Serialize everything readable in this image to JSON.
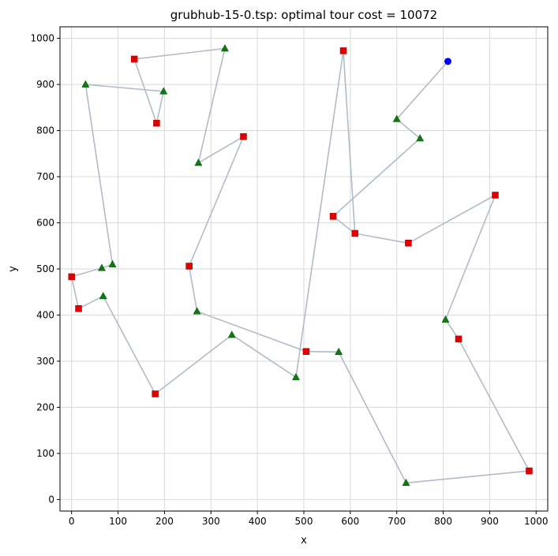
{
  "chart_data": {
    "type": "scatter",
    "title": "grubhub-15-0.tsp: optimal tour cost = 10072",
    "xlabel": "x",
    "ylabel": "y",
    "xlim": [
      -25,
      1025
    ],
    "ylim": [
      -25,
      1025
    ],
    "xticks": [
      0,
      100,
      200,
      300,
      400,
      500,
      600,
      700,
      800,
      900,
      1000
    ],
    "yticks": [
      0,
      100,
      200,
      300,
      400,
      500,
      600,
      700,
      800,
      900,
      1000
    ],
    "grid": true,
    "colors": {
      "tour": "#b0bcc8",
      "start": "#0000ff",
      "pickup": "#e00000",
      "dropoff": "#117711",
      "grid": "#d9d9d9"
    },
    "tour": [
      [
        810,
        950
      ],
      [
        700,
        825
      ],
      [
        750,
        783
      ],
      [
        563,
        614
      ],
      [
        610,
        577
      ],
      [
        725,
        556
      ],
      [
        912,
        660
      ],
      [
        805,
        390
      ],
      [
        833,
        348
      ],
      [
        985,
        62
      ],
      [
        720,
        36
      ],
      [
        575,
        320
      ],
      [
        505,
        321
      ],
      [
        270,
        408
      ],
      [
        253,
        506
      ],
      [
        370,
        787
      ],
      [
        273,
        730
      ],
      [
        330,
        978
      ],
      [
        135,
        955
      ],
      [
        183,
        816
      ],
      [
        198,
        885
      ],
      [
        30,
        900
      ],
      [
        88,
        510
      ],
      [
        65,
        502
      ],
      [
        0,
        483
      ],
      [
        15,
        414
      ],
      [
        68,
        441
      ],
      [
        180,
        229
      ],
      [
        345,
        357
      ],
      [
        483,
        265
      ],
      [
        585,
        973
      ],
      [
        610,
        577
      ]
    ],
    "start": [
      [
        810,
        950
      ]
    ],
    "pickups": [
      [
        585,
        973
      ],
      [
        135,
        955
      ],
      [
        183,
        816
      ],
      [
        370,
        787
      ],
      [
        563,
        614
      ],
      [
        912,
        660
      ],
      [
        610,
        577
      ],
      [
        725,
        556
      ],
      [
        253,
        506
      ],
      [
        0,
        483
      ],
      [
        15,
        414
      ],
      [
        833,
        348
      ],
      [
        505,
        321
      ],
      [
        180,
        229
      ],
      [
        985,
        62
      ]
    ],
    "dropoffs": [
      [
        330,
        978
      ],
      [
        198,
        885
      ],
      [
        30,
        900
      ],
      [
        700,
        825
      ],
      [
        750,
        783
      ],
      [
        273,
        730
      ],
      [
        88,
        510
      ],
      [
        65,
        502
      ],
      [
        68,
        441
      ],
      [
        270,
        408
      ],
      [
        805,
        390
      ],
      [
        345,
        357
      ],
      [
        575,
        320
      ],
      [
        483,
        265
      ],
      [
        720,
        36
      ]
    ]
  }
}
